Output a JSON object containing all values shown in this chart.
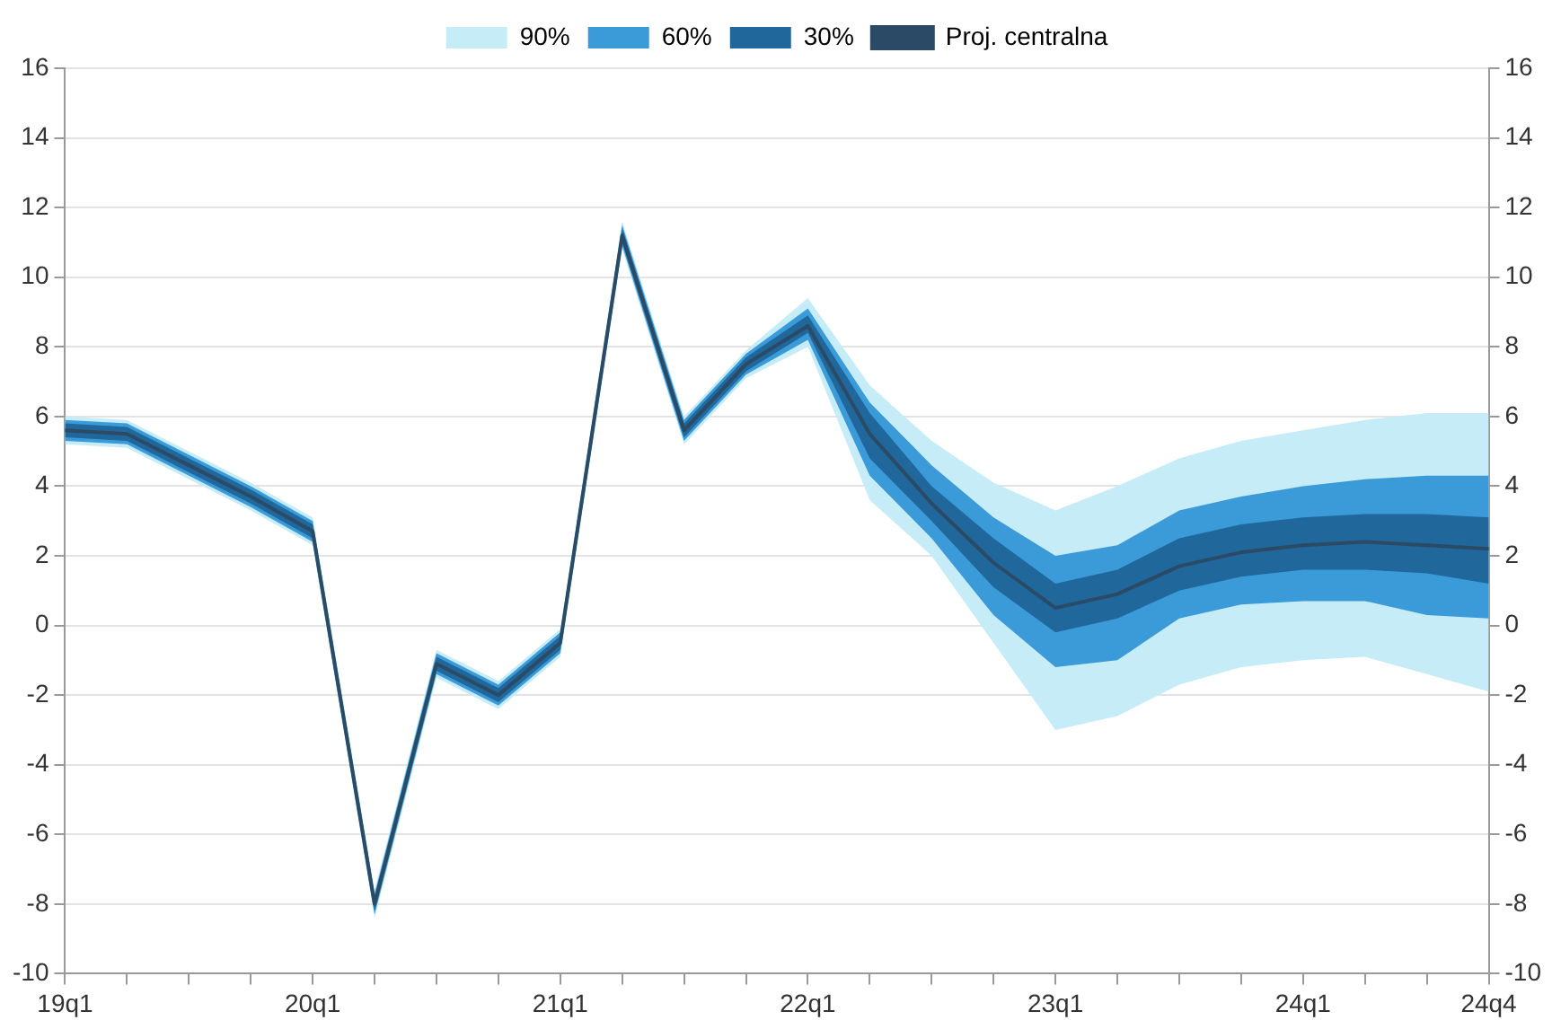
{
  "chart_data": {
    "type": "line",
    "categories": [
      "19q1",
      null,
      null,
      null,
      "20q1",
      null,
      null,
      null,
      "21q1",
      null,
      null,
      null,
      "22q1",
      null,
      null,
      null,
      "23q1",
      null,
      null,
      null,
      "24q1",
      null,
      null,
      "24q4"
    ],
    "series": [
      {
        "name": "90%",
        "type": "area",
        "color": "#c6ecf8",
        "values": [
          null,
          null,
          null,
          null,
          null,
          null,
          null,
          null,
          null,
          null,
          null,
          null,
          null,
          null,
          null,
          null,
          null,
          null,
          null,
          null,
          null,
          null,
          null,
          null
        ],
        "lower": [
          5.2,
          5.1,
          4.2,
          3.3,
          2.3,
          -8.4,
          -1.5,
          -2.4,
          -0.9,
          10.8,
          5.2,
          7.1,
          8.0,
          3.6,
          2.0,
          -0.5,
          -3.0,
          -2.6,
          -1.7,
          -1.2,
          -1.0,
          -0.9,
          -1.4,
          -1.9
        ],
        "upper": [
          6.0,
          5.9,
          5.0,
          4.1,
          3.1,
          -7.6,
          -0.7,
          -1.6,
          -0.1,
          11.6,
          6.0,
          7.9,
          9.4,
          6.9,
          5.3,
          4.1,
          3.3,
          4.0,
          4.8,
          5.3,
          5.6,
          5.9,
          6.1,
          6.1
        ]
      },
      {
        "name": "60%",
        "type": "area",
        "color": "#3b9bd8",
        "values": [
          null,
          null,
          null,
          null,
          null,
          null,
          null,
          null,
          null,
          null,
          null,
          null,
          null,
          null,
          null,
          null,
          null,
          null,
          null,
          null,
          null,
          null,
          null,
          null
        ],
        "lower": [
          5.3,
          5.2,
          4.3,
          3.4,
          2.4,
          -8.3,
          -1.4,
          -2.3,
          -0.8,
          10.9,
          5.3,
          7.2,
          8.2,
          4.3,
          2.5,
          0.3,
          -1.2,
          -1.0,
          0.2,
          0.6,
          0.7,
          0.7,
          0.3,
          0.2
        ],
        "upper": [
          5.9,
          5.8,
          4.9,
          4.0,
          3.0,
          -7.7,
          -0.8,
          -1.7,
          -0.2,
          11.5,
          5.9,
          7.8,
          9.1,
          6.4,
          4.6,
          3.1,
          2.0,
          2.3,
          3.3,
          3.7,
          4.0,
          4.2,
          4.3,
          4.3
        ]
      },
      {
        "name": "30%",
        "type": "area",
        "color": "#20679c",
        "values": [
          null,
          null,
          null,
          null,
          null,
          null,
          null,
          null,
          null,
          null,
          null,
          null,
          null,
          null,
          null,
          null,
          null,
          null,
          null,
          null,
          null,
          null,
          null,
          null
        ],
        "lower": [
          5.4,
          5.3,
          4.4,
          3.5,
          2.5,
          -8.2,
          -1.3,
          -2.2,
          -0.7,
          11.0,
          5.4,
          7.3,
          8.4,
          4.8,
          3.0,
          1.1,
          -0.2,
          0.2,
          1.0,
          1.4,
          1.6,
          1.6,
          1.5,
          1.2
        ],
        "upper": [
          5.8,
          5.7,
          4.8,
          3.9,
          2.9,
          -7.8,
          -0.9,
          -1.8,
          -0.3,
          11.4,
          5.8,
          7.7,
          8.9,
          6.1,
          4.0,
          2.5,
          1.2,
          1.6,
          2.5,
          2.9,
          3.1,
          3.2,
          3.2,
          3.1
        ]
      },
      {
        "name": "Proj. centralna",
        "type": "line",
        "color": "#2a4a66",
        "values": [
          5.6,
          5.5,
          4.6,
          3.7,
          2.7,
          -8.0,
          -1.1,
          -2.0,
          -0.5,
          11.2,
          5.6,
          7.5,
          8.6,
          5.5,
          3.5,
          1.8,
          0.5,
          0.9,
          1.7,
          2.1,
          2.3,
          2.4,
          2.3,
          2.2
        ]
      }
    ],
    "ylim": [
      -10,
      16
    ],
    "yticks": [
      -10,
      -8,
      -6,
      -4,
      -2,
      0,
      2,
      4,
      6,
      8,
      10,
      12,
      14,
      16
    ],
    "y2lim": [
      -10,
      16
    ],
    "y2ticks": [
      -10,
      -8,
      -6,
      -4,
      -2,
      0,
      2,
      4,
      6,
      8,
      10,
      12,
      14,
      16
    ],
    "grid": "y",
    "legend": "top",
    "marker": "none",
    "line_style": "solid"
  }
}
